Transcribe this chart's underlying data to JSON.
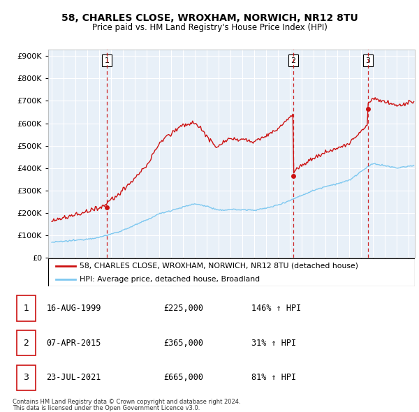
{
  "title": "58, CHARLES CLOSE, WROXHAM, NORWICH, NR12 8TU",
  "subtitle": "Price paid vs. HM Land Registry's House Price Index (HPI)",
  "legend_line1": "58, CHARLES CLOSE, WROXHAM, NORWICH, NR12 8TU (detached house)",
  "legend_line2": "HPI: Average price, detached house, Broadland",
  "transactions": [
    {
      "num": 1,
      "date": "16-AUG-1999",
      "price": 225000,
      "pct": "146%",
      "dir": "↑"
    },
    {
      "num": 2,
      "date": "07-APR-2015",
      "price": 365000,
      "pct": "31%",
      "dir": "↑"
    },
    {
      "num": 3,
      "date": "23-JUL-2021",
      "price": 665000,
      "pct": "81%",
      "dir": "↑"
    }
  ],
  "transaction_dates_decimal": [
    1999.63,
    2015.27,
    2021.56
  ],
  "transaction_prices": [
    225000,
    365000,
    665000
  ],
  "footnote1": "Contains HM Land Registry data © Crown copyright and database right 2024.",
  "footnote2": "This data is licensed under the Open Government Licence v3.0.",
  "hpi_color": "#7ec8f0",
  "price_color": "#cc1111",
  "dashed_color": "#cc1111",
  "plot_bg": "#e8f0f8",
  "ylim": [
    0,
    930000
  ],
  "yticks": [
    0,
    100000,
    200000,
    300000,
    400000,
    500000,
    600000,
    700000,
    800000,
    900000
  ],
  "xlim_start": 1994.7,
  "xlim_end": 2025.5
}
